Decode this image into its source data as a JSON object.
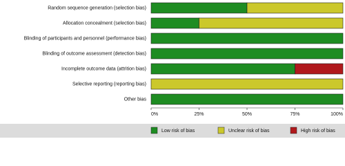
{
  "chart_data": {
    "type": "stacked-bar-horizontal",
    "categories": [
      "Random sequence generation (selection bias)",
      "Allocation concealment (selection bias)",
      "Blinding of participants and personnel (performance bias)",
      "Blinding of outcome assessment (detection bias)",
      "Incomplete outcome data (attrition bias)",
      "Selective reporting (reporting bias)",
      "Other bias"
    ],
    "series": [
      {
        "name": "Low risk of bias",
        "color": "#1e8c22",
        "values": [
          50,
          25,
          100,
          100,
          75,
          0,
          100
        ]
      },
      {
        "name": "Unclear risk of bias",
        "color": "#cbc82c",
        "values": [
          50,
          75,
          0,
          0,
          0,
          100,
          0
        ]
      },
      {
        "name": "High risk of bias",
        "color": "#b0191c",
        "values": [
          0,
          0,
          0,
          0,
          25,
          0,
          0
        ]
      }
    ],
    "xlim": [
      0,
      100
    ],
    "xticks": [
      {
        "value": 0,
        "label": "0%"
      },
      {
        "value": 25,
        "label": "25%"
      },
      {
        "value": 50,
        "label": "50%"
      },
      {
        "value": 75,
        "label": "75%"
      },
      {
        "value": 100,
        "label": "100%"
      }
    ],
    "legend": "bottom"
  }
}
